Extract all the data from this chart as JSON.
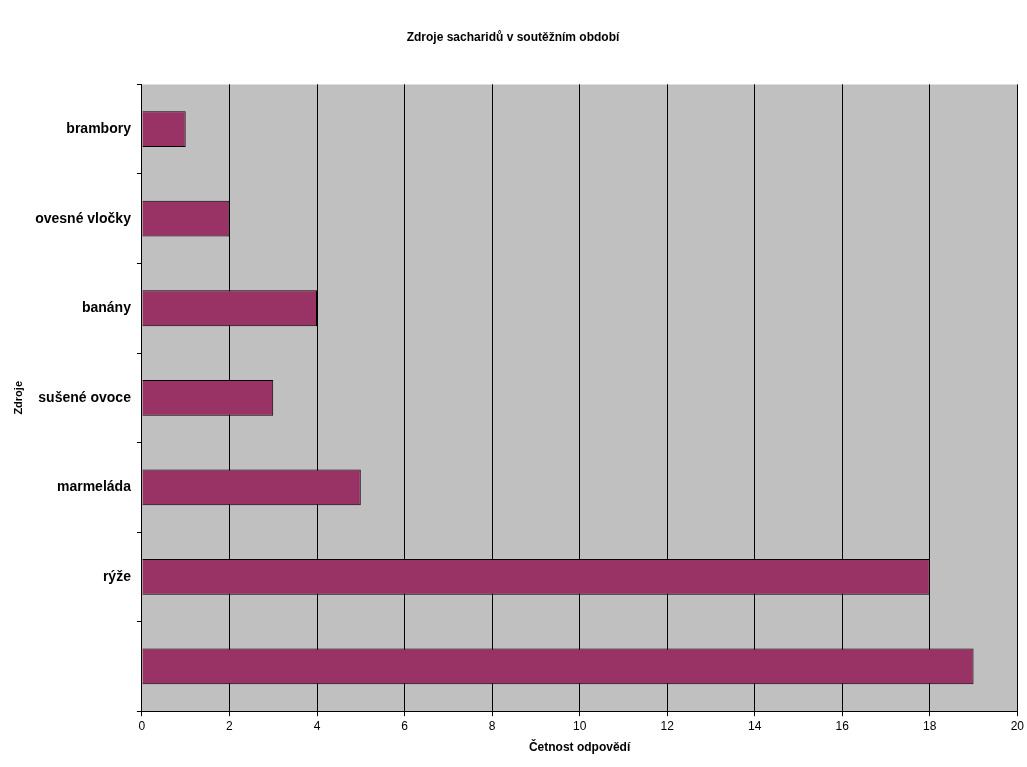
{
  "chart_data": {
    "type": "bar",
    "orientation": "horizontal",
    "title": "Zdroje sacharidů v soutěžním období",
    "xlabel": "Četnost odpovědí",
    "ylabel": "Zdroje",
    "categories": [
      "brambory",
      "ovesné vločky",
      "banány",
      "sušené ovoce",
      "marmeláda",
      "rýže",
      null
    ],
    "values": [
      1,
      2,
      4,
      3,
      5,
      18,
      19
    ],
    "color": "#993366",
    "xlim": [
      0,
      20
    ],
    "xticks": [
      0,
      2,
      4,
      6,
      8,
      10,
      12,
      14,
      16,
      18,
      20
    ],
    "grid": "x",
    "legend": false
  }
}
